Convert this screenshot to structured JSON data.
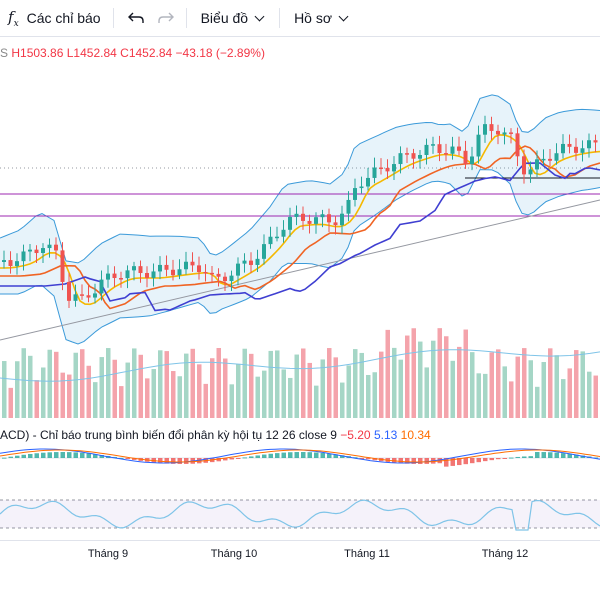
{
  "toolbar": {
    "indicators_label": "Các chỉ báo",
    "chart_label": "Biểu đồ",
    "profile_label": "Hồ sơ"
  },
  "ohlc": {
    "prefix": "S",
    "high": "H1503.86",
    "low": "L1452.84",
    "close": "C1452.84",
    "change": "−43.18 (−2.89%)"
  },
  "macd": {
    "title": "ACD) - Chỉ báo trung bình biến đổi phân kỳ hội tụ 12 26 close 9",
    "v1": "−5.20",
    "v2": "5.13",
    "v3": "10.34"
  },
  "time_axis": [
    "Tháng 9",
    "Tháng 10",
    "Tháng 11",
    "Tháng 12"
  ],
  "colors": {
    "up": "#26a69a",
    "down": "#ef5350",
    "vol_up": "#a5d6c6",
    "vol_down": "#f4a3ab",
    "ma_fast": "#f5b800",
    "ma_mid": "#f06424",
    "ma_slow": "#3f3fd1",
    "bb": "#3b9ad9"
  }
}
